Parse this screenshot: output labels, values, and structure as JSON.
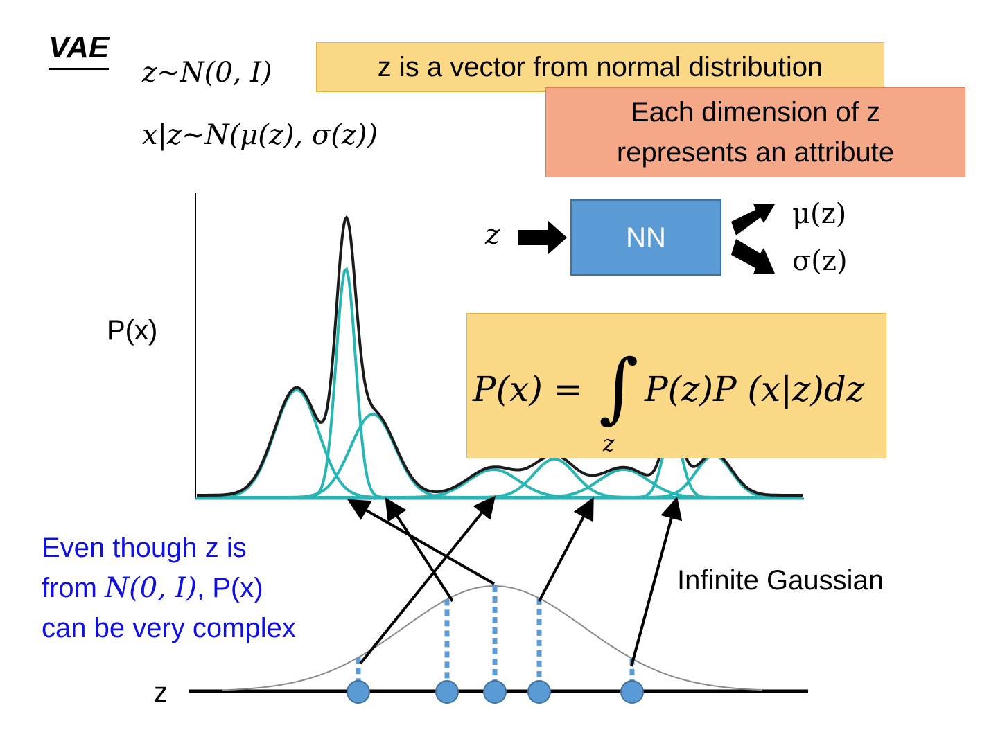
{
  "title": "VAE",
  "formulas": {
    "prior": "z∼N(0, I)",
    "likelihood": "x|z∼N(μ(z), σ(z))",
    "marginal_lhs": "P(x) = ",
    "marginal_rhs": "P(z)P (x|z)dz",
    "integral_sub": "z"
  },
  "boxes": {
    "vector_note": "z is a vector from normal distribution",
    "attribute_line1": "Each dimension of z",
    "attribute_line2": "represents an attribute"
  },
  "network": {
    "input": "z",
    "block": "NN",
    "out_mu": "μ(z)",
    "out_sigma": "σ(z)"
  },
  "axis_labels": {
    "px": "P(x)",
    "z": "z"
  },
  "notes": {
    "infinite": "Infinite Gaussian",
    "complex_line1": "Even though z is",
    "complex_line2_pre": "from ",
    "complex_line2_math": "N(0, I)",
    "complex_line2_post": ", P(x)",
    "complex_line3": "can be very complex"
  },
  "colors": {
    "mixture": "#1b1b1b",
    "components": "#2ab5b5",
    "sample_points": "#5b9bd5",
    "prior_curve": "#8a8a8a",
    "note_blue": "#1010e0"
  }
}
